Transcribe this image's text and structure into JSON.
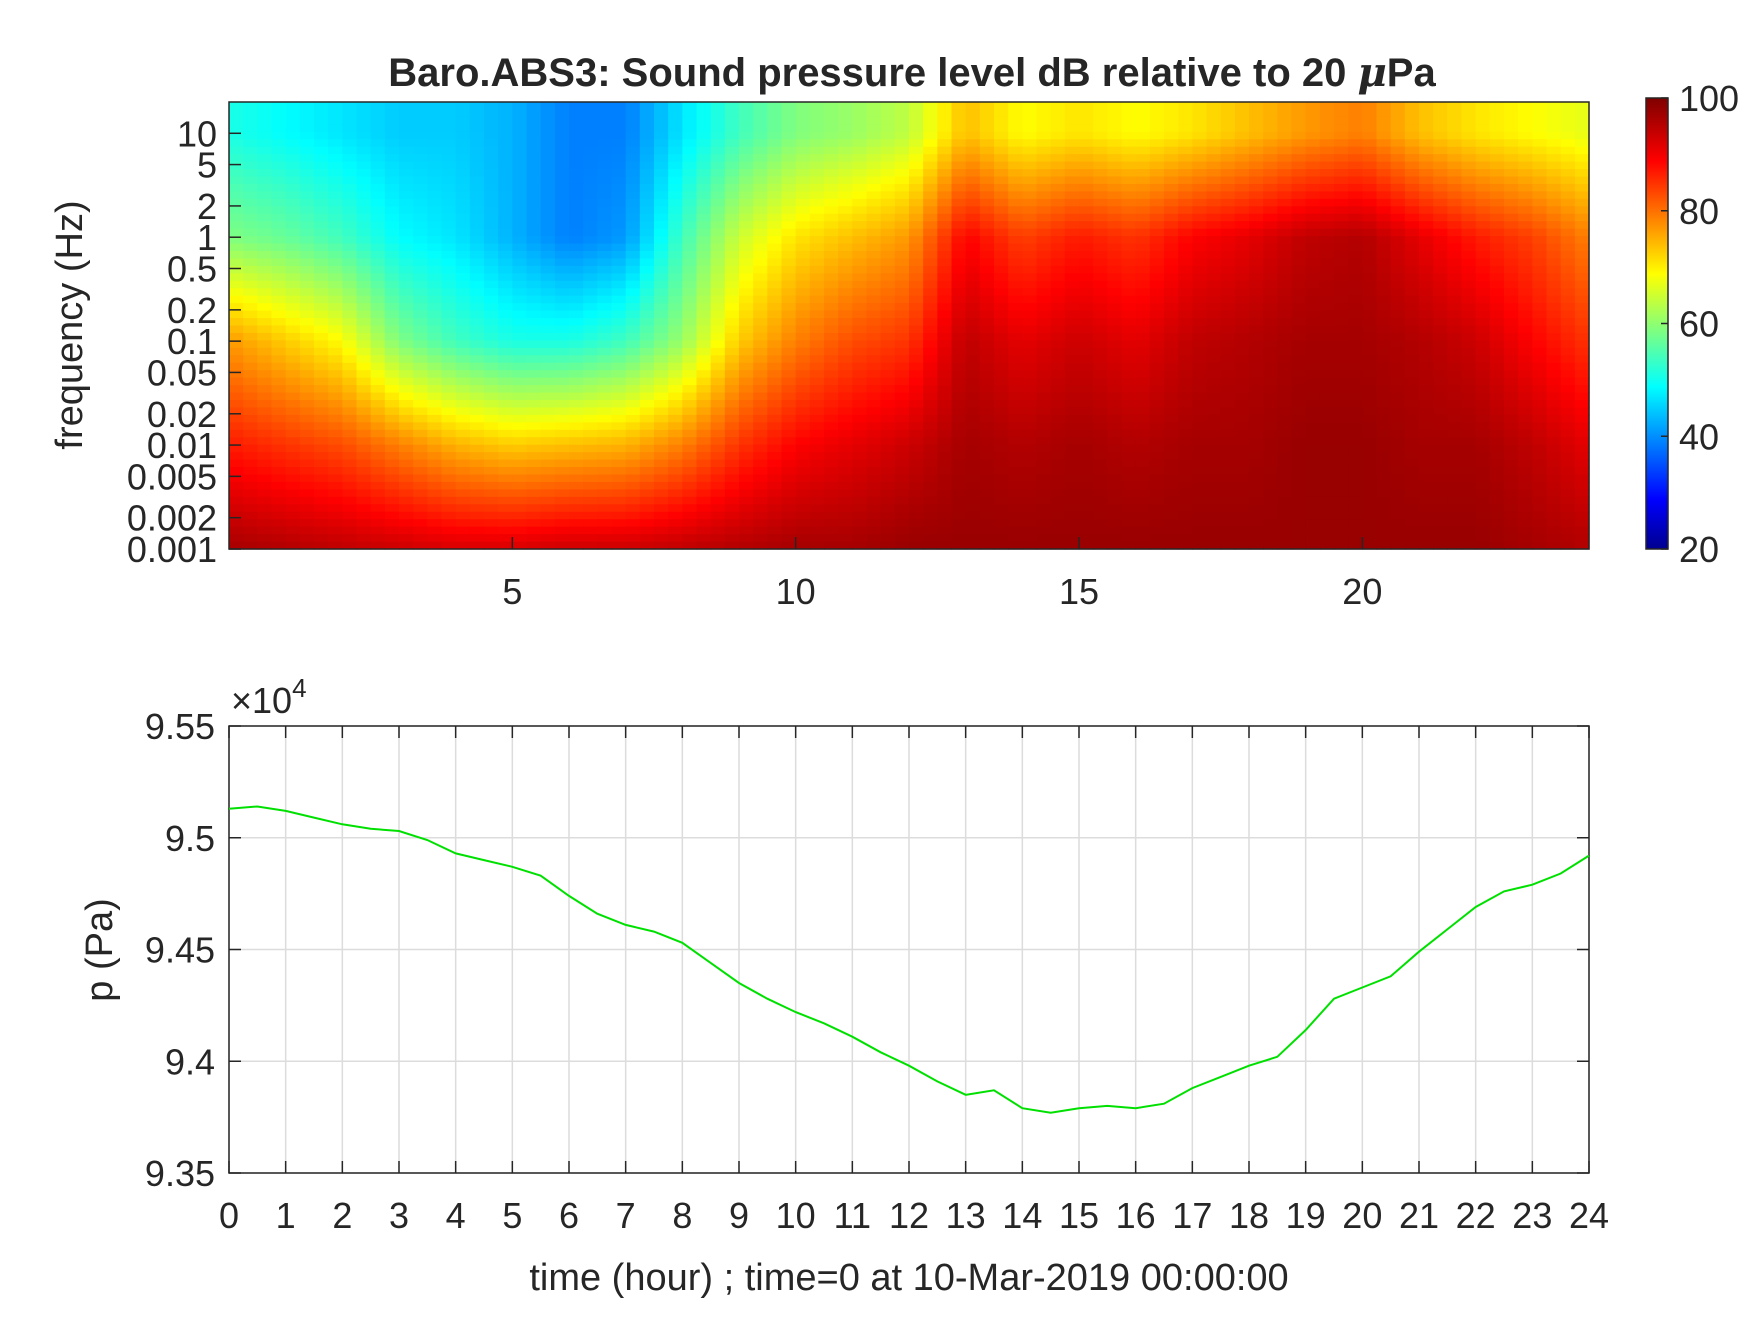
{
  "chart_data": [
    {
      "type": "heatmap",
      "title": "Baro.ABS3: Sound pressure level dB relative to 20 μPa",
      "title_prefix": "Baro.ABS3: Sound pressure level dB relative to 20 ",
      "title_unit_mu": "μ",
      "title_unit_rest": "Pa",
      "ylabel": "frequency (Hz)",
      "xlabel": "",
      "y_scale": "log",
      "xlim": [
        0,
        24
      ],
      "ylim": [
        0.001,
        20
      ],
      "x_ticks": [
        5,
        10,
        15,
        20
      ],
      "x_tick_labels": [
        "5",
        "10",
        "15",
        "20"
      ],
      "y_ticks": [
        10,
        5,
        2,
        1,
        0.5,
        0.2,
        0.1,
        0.05,
        0.02,
        0.01,
        0.005,
        0.002,
        0.001
      ],
      "y_tick_labels": [
        "10",
        "5",
        "2",
        "1",
        "0.5",
        "0.2",
        "0.1",
        "0.05",
        "0.02",
        "0.01",
        "0.005",
        "0.002",
        "0.001"
      ],
      "colormap": "jet",
      "colorbar": {
        "range": [
          20,
          100
        ],
        "ticks": [
          20,
          40,
          60,
          80,
          100
        ],
        "tick_labels": [
          "20",
          "40",
          "60",
          "80",
          "100"
        ],
        "location": "right"
      },
      "time_hours": [
        0,
        1,
        2,
        3,
        4,
        5,
        6,
        7,
        8,
        9,
        10,
        11,
        12,
        13,
        14,
        15,
        16,
        17,
        18,
        19,
        20,
        21,
        22,
        23,
        24
      ],
      "frequency_hz": [
        10,
        1,
        0.1,
        0.01,
        0.001
      ],
      "level_db": [
        [
          52,
          50,
          48,
          46,
          46,
          44,
          40,
          40,
          48,
          55,
          60,
          62,
          65,
          75,
          70,
          72,
          70,
          72,
          75,
          78,
          80,
          75,
          72,
          70,
          68
        ],
        [
          60,
          58,
          55,
          50,
          48,
          44,
          40,
          42,
          55,
          66,
          72,
          75,
          78,
          90,
          85,
          88,
          86,
          90,
          92,
          95,
          96,
          92,
          88,
          85,
          80
        ],
        [
          78,
          74,
          70,
          60,
          55,
          52,
          52,
          55,
          62,
          74,
          80,
          84,
          86,
          95,
          92,
          94,
          92,
          95,
          96,
          97,
          97,
          96,
          94,
          90,
          86
        ],
        [
          88,
          86,
          84,
          80,
          76,
          74,
          75,
          76,
          80,
          86,
          90,
          92,
          94,
          97,
          96,
          97,
          96,
          97,
          97,
          98,
          98,
          97,
          97,
          95,
          92
        ],
        [
          97,
          96,
          95,
          94,
          93,
          93,
          94,
          94,
          95,
          96,
          97,
          97,
          98,
          98,
          98,
          98,
          98,
          98,
          98,
          98,
          98,
          98,
          98,
          97,
          96
        ]
      ]
    },
    {
      "type": "line",
      "title": "",
      "xlabel": "time (hour) ; time=0 at 10-Mar-2019 00:00:00",
      "ylabel": "p (Pa)",
      "y_multiplier_base": "×10",
      "y_multiplier_exp": "4",
      "xlim": [
        0,
        24
      ],
      "ylim": [
        9.35,
        9.55
      ],
      "x_ticks": [
        0,
        1,
        2,
        3,
        4,
        5,
        6,
        7,
        8,
        9,
        10,
        11,
        12,
        13,
        14,
        15,
        16,
        17,
        18,
        19,
        20,
        21,
        22,
        23,
        24
      ],
      "x_tick_labels": [
        "0",
        "1",
        "2",
        "3",
        "4",
        "5",
        "6",
        "7",
        "8",
        "9",
        "10",
        "11",
        "12",
        "13",
        "14",
        "15",
        "16",
        "17",
        "18",
        "19",
        "20",
        "21",
        "22",
        "23",
        "24"
      ],
      "y_ticks": [
        9.35,
        9.4,
        9.45,
        9.5,
        9.55
      ],
      "y_tick_labels": [
        "9.35",
        "9.4",
        "9.45",
        "9.5",
        "9.55"
      ],
      "grid": true,
      "series": [
        {
          "color": "#00e000",
          "x": [
            0,
            0.5,
            1,
            1.5,
            2,
            2.5,
            3,
            3.5,
            4,
            4.5,
            5,
            5.5,
            6,
            6.5,
            7,
            7.5,
            8,
            8.5,
            9,
            9.5,
            10,
            10.5,
            11,
            11.5,
            12,
            12.5,
            13,
            13.5,
            14,
            14.5,
            15,
            15.5,
            16,
            16.5,
            17,
            17.5,
            18,
            18.5,
            19,
            19.5,
            20,
            20.5,
            21,
            21.5,
            22,
            22.5,
            23,
            23.5,
            24
          ],
          "y": [
            9.513,
            9.514,
            9.512,
            9.509,
            9.506,
            9.504,
            9.503,
            9.499,
            9.493,
            9.49,
            9.487,
            9.483,
            9.474,
            9.466,
            9.461,
            9.458,
            9.453,
            9.444,
            9.435,
            9.428,
            9.422,
            9.417,
            9.411,
            9.404,
            9.398,
            9.391,
            9.385,
            9.387,
            9.379,
            9.377,
            9.379,
            9.38,
            9.379,
            9.381,
            9.388,
            9.393,
            9.398,
            9.402,
            9.414,
            9.428,
            9.433,
            9.438,
            9.449,
            9.459,
            9.469,
            9.476,
            9.479,
            9.484,
            9.492
          ]
        }
      ]
    }
  ]
}
